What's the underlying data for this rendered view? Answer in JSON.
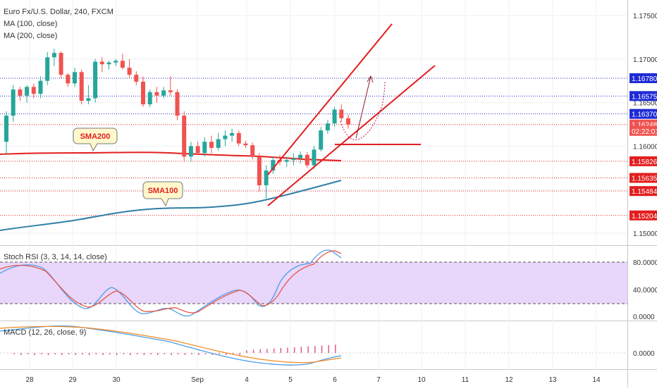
{
  "header": {
    "symbol_line": "Euro Fx/U.S. Dollar, 240, FXCM",
    "ma1": "MA (100, close)",
    "ma2": "MA (200, close)"
  },
  "price_axis": {
    "ticks": [
      "1.17500",
      "1.17000",
      "1.16500",
      "1.16000",
      "1.15500",
      "1.15000"
    ],
    "ticks_values": [
      1.175,
      1.17,
      1.165,
      1.16,
      1.155,
      1.15
    ]
  },
  "price_tags": [
    {
      "text": "1.16780",
      "value": 1.1678,
      "bg": "#1e2ad6"
    },
    {
      "text": "1.16575",
      "value": 1.16575,
      "bg": "#1e2ad6"
    },
    {
      "text": "1.16370",
      "value": 1.1637,
      "bg": "#1e2ad6"
    },
    {
      "text": "1.16248",
      "value": 1.16248,
      "bg": "#ef5350"
    },
    {
      "text": "02:22:01",
      "value": 1.16175,
      "bg": "#ef5350"
    },
    {
      "text": "1.15826",
      "value": 1.15826,
      "bg": "#e31e1e"
    },
    {
      "text": "1.15635",
      "value": 1.15635,
      "bg": "#e31e1e"
    },
    {
      "text": "1.15484",
      "value": 1.15484,
      "bg": "#e31e1e"
    },
    {
      "text": "1.15204",
      "value": 1.15204,
      "bg": "#e31e1e"
    }
  ],
  "annotations": {
    "sma200": "SMA200",
    "sma100": "SMA100"
  },
  "stoch": {
    "label": "Stoch RSI (3, 3, 14, 14, close)",
    "ticks": [
      "80.0000",
      "40.0000",
      "0.0000"
    ],
    "band": [
      20,
      80
    ]
  },
  "macd": {
    "label": "MACD (12, 26, close, 9)",
    "tick": "0.0000"
  },
  "time_axis": {
    "labels": [
      "28",
      "29",
      "30",
      "Sep",
      "4",
      "5",
      "6",
      "7",
      "10",
      "11",
      "12",
      "13",
      "14"
    ]
  },
  "colors": {
    "up": "#26a69a",
    "down": "#ef5350",
    "sma200": "#e31e1e",
    "sma100": "#2f7fa8",
    "blue_level": "#1e2ad6",
    "red_level": "#e31e1e",
    "stoch_k": "#4a9ee6",
    "stoch_d": "#e8534a",
    "macd_line": "#4a9ee6",
    "signal_line": "#f08a24"
  },
  "chart_data": {
    "type": "candlestick",
    "symbol": "Euro Fx/U.S. Dollar, 240, FXCM",
    "price_range": [
      1.148,
      1.178
    ],
    "candles": [
      {
        "o": 1.1605,
        "h": 1.164,
        "l": 1.159,
        "c": 1.1635
      },
      {
        "o": 1.1635,
        "h": 1.167,
        "l": 1.1628,
        "c": 1.1665
      },
      {
        "o": 1.1665,
        "h": 1.1668,
        "l": 1.1652,
        "c": 1.1658
      },
      {
        "o": 1.1658,
        "h": 1.167,
        "l": 1.165,
        "c": 1.1668
      },
      {
        "o": 1.1668,
        "h": 1.1672,
        "l": 1.1655,
        "c": 1.166
      },
      {
        "o": 1.166,
        "h": 1.168,
        "l": 1.1655,
        "c": 1.1675
      },
      {
        "o": 1.1675,
        "h": 1.1708,
        "l": 1.167,
        "c": 1.1702
      },
      {
        "o": 1.1702,
        "h": 1.1712,
        "l": 1.1692,
        "c": 1.1707
      },
      {
        "o": 1.1707,
        "h": 1.1709,
        "l": 1.1678,
        "c": 1.1682
      },
      {
        "o": 1.1682,
        "h": 1.1684,
        "l": 1.1668,
        "c": 1.1672
      },
      {
        "o": 1.1672,
        "h": 1.169,
        "l": 1.1668,
        "c": 1.1685
      },
      {
        "o": 1.1685,
        "h": 1.1688,
        "l": 1.1648,
        "c": 1.1652
      },
      {
        "o": 1.1652,
        "h": 1.167,
        "l": 1.1648,
        "c": 1.1655
      },
      {
        "o": 1.1655,
        "h": 1.17,
        "l": 1.165,
        "c": 1.1697
      },
      {
        "o": 1.1697,
        "h": 1.1702,
        "l": 1.1685,
        "c": 1.1694
      },
      {
        "o": 1.1694,
        "h": 1.1698,
        "l": 1.1688,
        "c": 1.1696
      },
      {
        "o": 1.1696,
        "h": 1.17,
        "l": 1.1692,
        "c": 1.1698
      },
      {
        "o": 1.1698,
        "h": 1.1706,
        "l": 1.1688,
        "c": 1.169
      },
      {
        "o": 1.169,
        "h": 1.17,
        "l": 1.1678,
        "c": 1.1682
      },
      {
        "o": 1.1682,
        "h": 1.1686,
        "l": 1.167,
        "c": 1.1674
      },
      {
        "o": 1.1674,
        "h": 1.168,
        "l": 1.1645,
        "c": 1.1648
      },
      {
        "o": 1.1648,
        "h": 1.1665,
        "l": 1.1645,
        "c": 1.1662
      },
      {
        "o": 1.1662,
        "h": 1.1668,
        "l": 1.165,
        "c": 1.1658
      },
      {
        "o": 1.1658,
        "h": 1.1668,
        "l": 1.1655,
        "c": 1.1664
      },
      {
        "o": 1.1664,
        "h": 1.168,
        "l": 1.1658,
        "c": 1.1662
      },
      {
        "o": 1.1662,
        "h": 1.1665,
        "l": 1.163,
        "c": 1.1635
      },
      {
        "o": 1.1635,
        "h": 1.164,
        "l": 1.1583,
        "c": 1.1588
      },
      {
        "o": 1.1588,
        "h": 1.1605,
        "l": 1.1582,
        "c": 1.16
      },
      {
        "o": 1.16,
        "h": 1.1605,
        "l": 1.159,
        "c": 1.1592
      },
      {
        "o": 1.1592,
        "h": 1.161,
        "l": 1.1588,
        "c": 1.1605
      },
      {
        "o": 1.1605,
        "h": 1.1612,
        "l": 1.1592,
        "c": 1.1598
      },
      {
        "o": 1.1598,
        "h": 1.1615,
        "l": 1.1595,
        "c": 1.1608
      },
      {
        "o": 1.1608,
        "h": 1.1618,
        "l": 1.16,
        "c": 1.1612
      },
      {
        "o": 1.1612,
        "h": 1.162,
        "l": 1.1605,
        "c": 1.1615
      },
      {
        "o": 1.1615,
        "h": 1.1618,
        "l": 1.16,
        "c": 1.1603
      },
      {
        "o": 1.1603,
        "h": 1.1606,
        "l": 1.1598,
        "c": 1.1601
      },
      {
        "o": 1.1601,
        "h": 1.1604,
        "l": 1.1585,
        "c": 1.1588
      },
      {
        "o": 1.1588,
        "h": 1.1592,
        "l": 1.1548,
        "c": 1.1555
      },
      {
        "o": 1.1555,
        "h": 1.1578,
        "l": 1.154,
        "c": 1.1572
      },
      {
        "o": 1.1572,
        "h": 1.1588,
        "l": 1.1568,
        "c": 1.1584
      },
      {
        "o": 1.1584,
        "h": 1.159,
        "l": 1.1578,
        "c": 1.1582
      },
      {
        "o": 1.1582,
        "h": 1.1588,
        "l": 1.1576,
        "c": 1.1584
      },
      {
        "o": 1.1584,
        "h": 1.1592,
        "l": 1.1578,
        "c": 1.1586
      },
      {
        "o": 1.1586,
        "h": 1.1594,
        "l": 1.158,
        "c": 1.159
      },
      {
        "o": 1.159,
        "h": 1.1593,
        "l": 1.1575,
        "c": 1.1578
      },
      {
        "o": 1.1578,
        "h": 1.16,
        "l": 1.1574,
        "c": 1.1596
      },
      {
        "o": 1.1596,
        "h": 1.1622,
        "l": 1.1594,
        "c": 1.1618
      },
      {
        "o": 1.1618,
        "h": 1.163,
        "l": 1.1614,
        "c": 1.1626
      },
      {
        "o": 1.1626,
        "h": 1.1645,
        "l": 1.1622,
        "c": 1.1642
      },
      {
        "o": 1.1642,
        "h": 1.1648,
        "l": 1.1628,
        "c": 1.1632
      },
      {
        "o": 1.1632,
        "h": 1.1636,
        "l": 1.162,
        "c": 1.1625
      }
    ],
    "levels": {
      "blue": [
        1.1678,
        1.16575,
        1.1637
      ],
      "red": [
        1.16248,
        1.15826,
        1.15635,
        1.15484,
        1.15204
      ]
    }
  }
}
